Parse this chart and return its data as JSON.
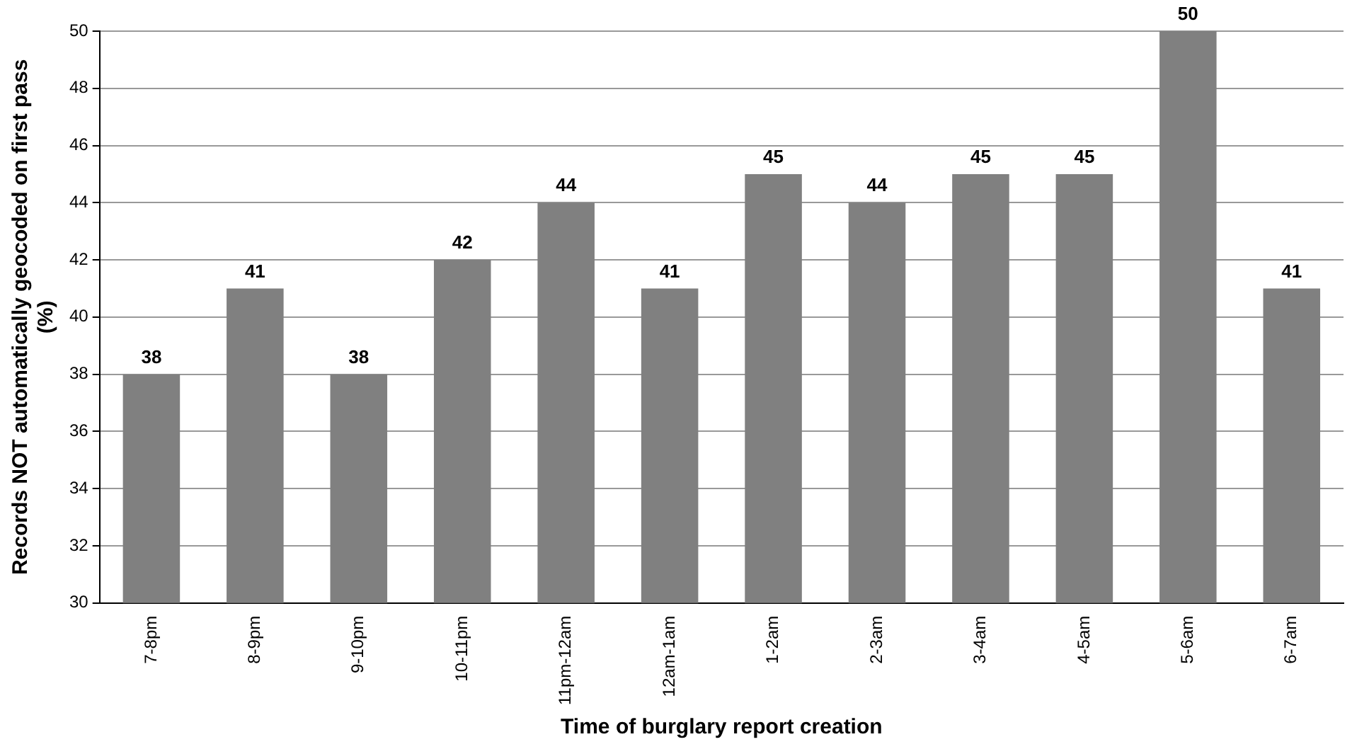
{
  "chart_data": {
    "type": "bar",
    "xlabel": "Time of burglary report creation",
    "ylabel": "Records NOT automatically geocoded on first pass (%)",
    "categories": [
      "7-8pm",
      "8-9pm",
      "9-10pm",
      "10-11pm",
      "11pm-12am",
      "12am-1am",
      "1-2am",
      "2-3am",
      "3-4am",
      "4-5am",
      "5-6am",
      "6-7am"
    ],
    "values": [
      38,
      41,
      38,
      42,
      44,
      41,
      45,
      44,
      45,
      45,
      50,
      41
    ],
    "color": "#808080",
    "ylim": [
      30,
      50
    ],
    "yticks": [
      30,
      32,
      34,
      36,
      38,
      40,
      42,
      44,
      46,
      48,
      50
    ],
    "grid": "y",
    "data_labels": true,
    "legend": false
  }
}
